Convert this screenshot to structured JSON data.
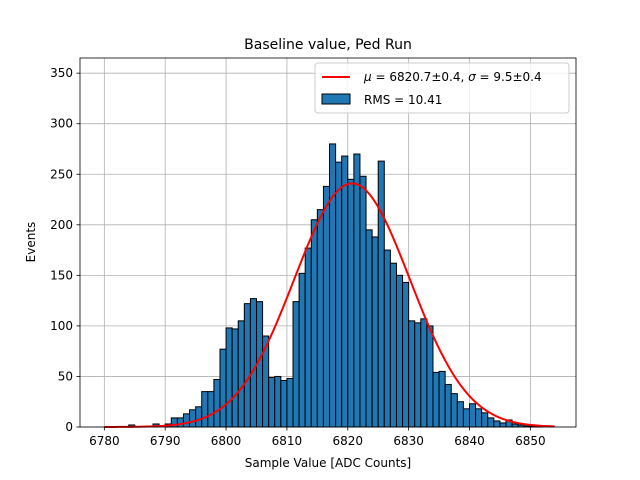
{
  "chart_data": {
    "type": "bar",
    "title": "Baseline value, Ped Run",
    "xlabel": "Sample Value [ADC Counts]",
    "ylabel": "Events",
    "xlim": [
      6776,
      6857.5
    ],
    "ylim": [
      0,
      365
    ],
    "xticks": [
      6780,
      6790,
      6800,
      6810,
      6820,
      6830,
      6840,
      6850
    ],
    "yticks": [
      0,
      50,
      100,
      150,
      200,
      250,
      300,
      350
    ],
    "grid": true,
    "legend_position": "top-right",
    "bin_width": 1,
    "histogram": {
      "name": "RMS = 10.41",
      "bin_starts": [
        6780,
        6781,
        6782,
        6783,
        6784,
        6785,
        6786,
        6787,
        6788,
        6789,
        6790,
        6791,
        6792,
        6793,
        6794,
        6795,
        6796,
        6797,
        6798,
        6799,
        6800,
        6801,
        6802,
        6803,
        6804,
        6805,
        6806,
        6807,
        6808,
        6809,
        6810,
        6811,
        6812,
        6813,
        6814,
        6815,
        6816,
        6817,
        6818,
        6819,
        6820,
        6821,
        6822,
        6823,
        6824,
        6825,
        6826,
        6827,
        6828,
        6829,
        6830,
        6831,
        6832,
        6833,
        6834,
        6835,
        6836,
        6837,
        6838,
        6839,
        6840,
        6841,
        6842,
        6843,
        6844,
        6845,
        6846,
        6847,
        6848,
        6849,
        6850,
        6851,
        6852,
        6853
      ],
      "values": [
        0,
        0,
        0,
        0,
        2,
        0,
        0,
        0,
        3,
        0,
        3,
        9,
        9,
        13,
        17,
        20,
        35,
        35,
        47,
        77,
        98,
        97,
        105,
        122,
        127,
        124,
        90,
        49,
        50,
        46,
        48,
        124,
        152,
        177,
        205,
        215,
        238,
        280,
        262,
        268,
        245,
        270,
        248,
        195,
        188,
        263,
        175,
        162,
        150,
        143,
        105,
        103,
        107,
        100,
        54,
        55,
        42,
        33,
        25,
        18,
        23,
        18,
        14,
        9,
        6,
        4,
        7,
        3,
        2,
        1,
        1,
        1,
        0,
        0
      ],
      "color": "#1f77b4"
    },
    "fit": {
      "name": "$\\mu = 6820.7{\\pm}0.4$, $\\sigma = 9.5{\\pm}0.4$",
      "mu": 6820.7,
      "sigma": 9.5,
      "amplitude": 241,
      "x_range": [
        6780,
        6854
      ],
      "color": "#ff0000"
    }
  }
}
